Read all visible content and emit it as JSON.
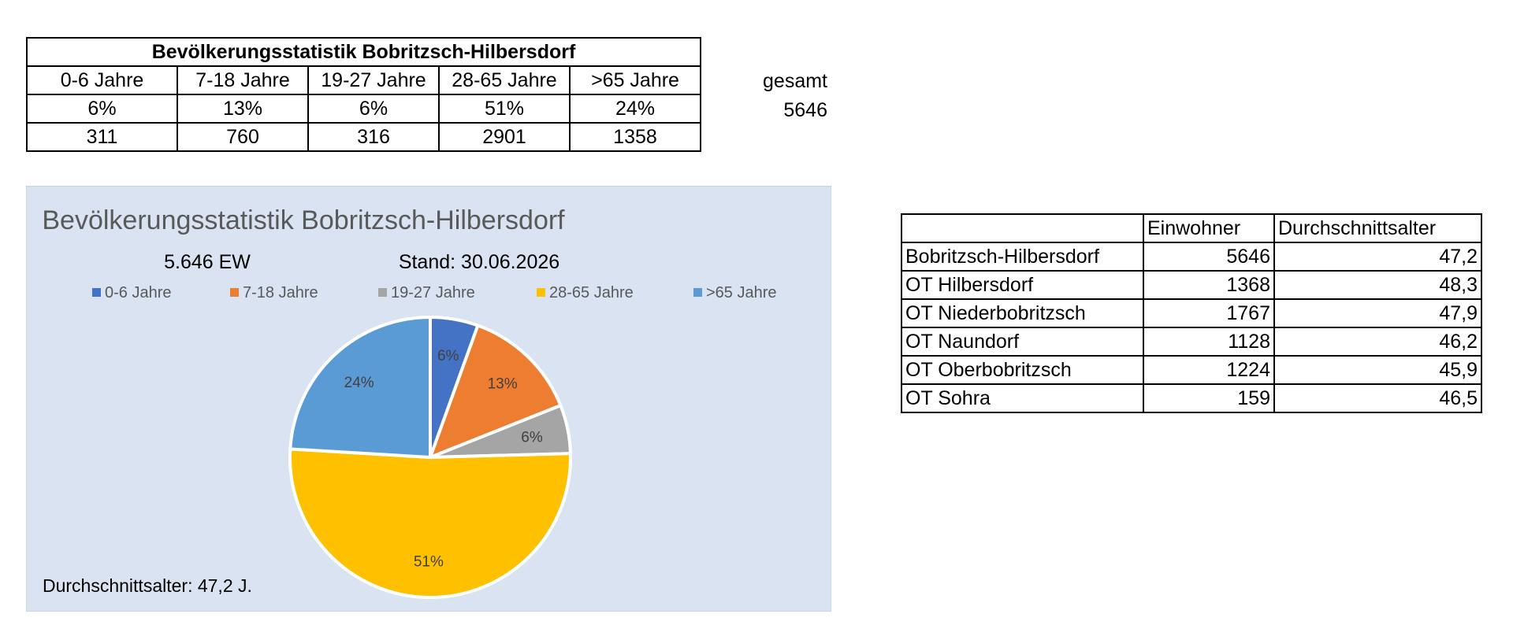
{
  "summary_table": {
    "title": "Bevölkerungsstatistik Bobritzsch-Hilbersdorf",
    "headers": [
      "0-6 Jahre",
      "7-18 Jahre",
      "19-27 Jahre",
      "28-65 Jahre",
      ">65 Jahre"
    ],
    "percents": [
      "6%",
      "13%",
      "6%",
      "51%",
      "24%"
    ],
    "counts": [
      "311",
      "760",
      "316",
      "2901",
      "1358"
    ],
    "total_label": "gesamt",
    "total_value": "5646"
  },
  "chart_data": {
    "type": "pie",
    "title": "Bevölkerungsstatistik Bobritzsch-Hilbersdorf",
    "subtitle_left": "5.646 EW",
    "subtitle_right": "Stand: 30.06.2026",
    "footer": "Durchschnittsalter: 47,2 J.",
    "legend_position": "top",
    "categories": [
      "0-6 Jahre",
      "7-18 Jahre",
      "19-27 Jahre",
      "28-65 Jahre",
      ">65 Jahre"
    ],
    "values": [
      311,
      760,
      316,
      2901,
      1358
    ],
    "labels": [
      "6%",
      "13%",
      "6%",
      "51%",
      "24%"
    ],
    "colors": [
      "#4472c4",
      "#ed7d31",
      "#a5a5a5",
      "#ffc000",
      "#5b9bd5"
    ]
  },
  "district_table": {
    "headers": [
      "",
      "Einwohner",
      "Durchschnittsalter"
    ],
    "rows": [
      {
        "name": "Bobritzsch-Hilbersdorf",
        "einwohner": "5646",
        "alter": "47,2"
      },
      {
        "name": "OT Hilbersdorf",
        "einwohner": "1368",
        "alter": "48,3"
      },
      {
        "name": "OT Niederbobritzsch",
        "einwohner": "1767",
        "alter": "47,9"
      },
      {
        "name": "OT Naundorf",
        "einwohner": "1128",
        "alter": "46,2"
      },
      {
        "name": "OT Oberbobritzsch",
        "einwohner": "1224",
        "alter": "45,9"
      },
      {
        "name": "OT Sohra",
        "einwohner": "159",
        "alter": "46,5"
      }
    ]
  }
}
